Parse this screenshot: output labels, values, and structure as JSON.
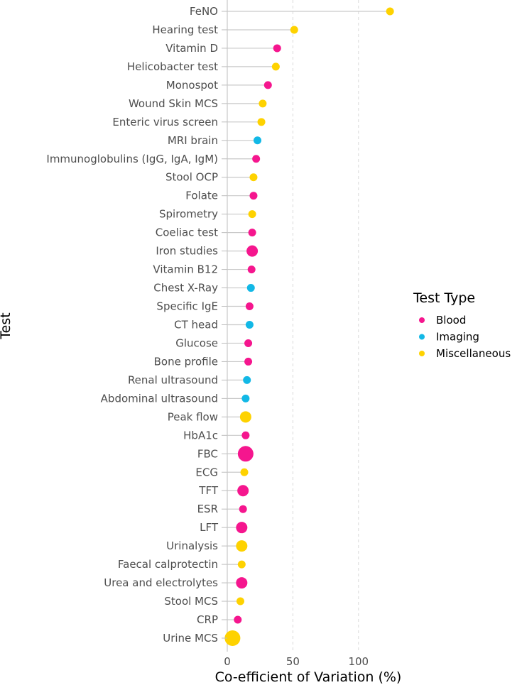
{
  "chart_data": {
    "type": "scatter",
    "subtype": "lollipop",
    "title": "",
    "xlabel": "Co-efficient of Variation (%)",
    "ylabel": "Test",
    "xlim": [
      -4,
      132
    ],
    "xticks": [
      "0",
      "50",
      "100"
    ],
    "xtick_values": [
      0,
      50,
      100
    ],
    "grid": "vertical dashed",
    "legend": {
      "title": "Test Type",
      "placement": "right",
      "entries": [
        {
          "name": "Blood",
          "color": "#f5168e"
        },
        {
          "name": "Imaging",
          "color": "#12b8e6"
        },
        {
          "name": "Miscellaneous",
          "color": "#fed200"
        }
      ]
    },
    "points": [
      {
        "test": "FeNO",
        "value": 124,
        "type": "Miscellaneous",
        "size": 1
      },
      {
        "test": "Hearing test",
        "value": 51,
        "type": "Miscellaneous",
        "size": 1
      },
      {
        "test": "Vitamin D",
        "value": 38,
        "type": "Blood",
        "size": 1
      },
      {
        "test": "Helicobacter test",
        "value": 37,
        "type": "Miscellaneous",
        "size": 1
      },
      {
        "test": "Monospot",
        "value": 31,
        "type": "Blood",
        "size": 1
      },
      {
        "test": "Wound Skin MCS",
        "value": 27,
        "type": "Miscellaneous",
        "size": 1
      },
      {
        "test": "Enteric virus screen",
        "value": 26,
        "type": "Miscellaneous",
        "size": 1
      },
      {
        "test": "MRI brain",
        "value": 23,
        "type": "Imaging",
        "size": 1
      },
      {
        "test": "Immunoglobulins (IgG, IgA, IgM)",
        "value": 22,
        "type": "Blood",
        "size": 1
      },
      {
        "test": "Stool OCP",
        "value": 20,
        "type": "Miscellaneous",
        "size": 1
      },
      {
        "test": "Folate",
        "value": 20,
        "type": "Blood",
        "size": 1
      },
      {
        "test": "Spirometry",
        "value": 19,
        "type": "Miscellaneous",
        "size": 1
      },
      {
        "test": "Coeliac test",
        "value": 19,
        "type": "Blood",
        "size": 1
      },
      {
        "test": "Iron studies",
        "value": 19,
        "type": "Blood",
        "size": 2
      },
      {
        "test": "Vitamin B12",
        "value": 18.5,
        "type": "Blood",
        "size": 1
      },
      {
        "test": "Chest X-Ray",
        "value": 18,
        "type": "Imaging",
        "size": 1
      },
      {
        "test": "Specific IgE",
        "value": 17,
        "type": "Blood",
        "size": 1
      },
      {
        "test": "CT head",
        "value": 17,
        "type": "Imaging",
        "size": 1
      },
      {
        "test": "Glucose",
        "value": 16,
        "type": "Blood",
        "size": 1
      },
      {
        "test": "Bone profile",
        "value": 16,
        "type": "Blood",
        "size": 1
      },
      {
        "test": "Renal ultrasound",
        "value": 15,
        "type": "Imaging",
        "size": 1
      },
      {
        "test": "Abdominal ultrasound",
        "value": 14,
        "type": "Imaging",
        "size": 1
      },
      {
        "test": "Peak flow",
        "value": 14,
        "type": "Miscellaneous",
        "size": 2
      },
      {
        "test": "HbA1c",
        "value": 14,
        "type": "Blood",
        "size": 1
      },
      {
        "test": "FBC",
        "value": 14,
        "type": "Blood",
        "size": 3
      },
      {
        "test": "ECG",
        "value": 13,
        "type": "Miscellaneous",
        "size": 1
      },
      {
        "test": "TFT",
        "value": 12,
        "type": "Blood",
        "size": 2
      },
      {
        "test": "ESR",
        "value": 12,
        "type": "Blood",
        "size": 1
      },
      {
        "test": "LFT",
        "value": 11,
        "type": "Blood",
        "size": 2
      },
      {
        "test": "Urinalysis",
        "value": 11,
        "type": "Miscellaneous",
        "size": 2
      },
      {
        "test": "Faecal calprotectin",
        "value": 11,
        "type": "Miscellaneous",
        "size": 1
      },
      {
        "test": "Urea and electrolytes",
        "value": 11,
        "type": "Blood",
        "size": 2
      },
      {
        "test": "Stool MCS",
        "value": 10,
        "type": "Miscellaneous",
        "size": 1
      },
      {
        "test": "CRP",
        "value": 8,
        "type": "Blood",
        "size": 1
      },
      {
        "test": "Urine MCS",
        "value": 4,
        "type": "Miscellaneous",
        "size": 3
      }
    ]
  }
}
